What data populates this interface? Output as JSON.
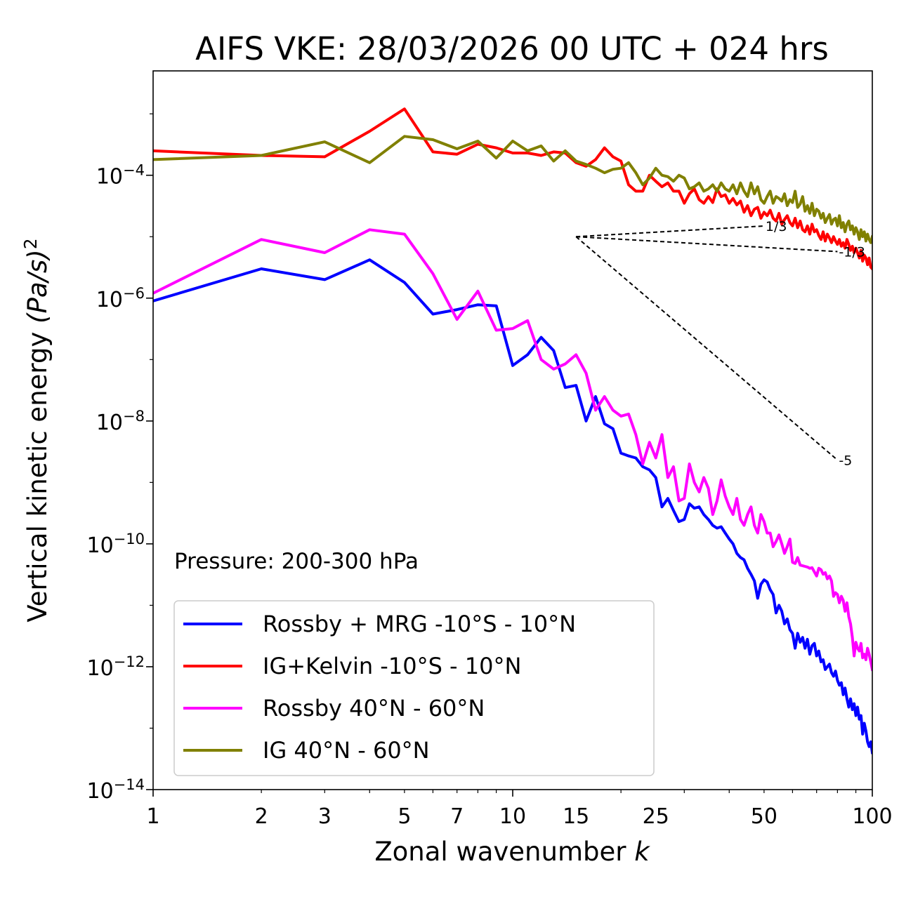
{
  "chart_data": {
    "type": "line",
    "title": "AIFS VKE: 28/03/2026 00 UTC + 024 hrs",
    "xlabel_text": "Zonal wavenumber ",
    "xlabel_italic": "k",
    "ylabel_text": "Vertical kinetic energy ",
    "ylabel_italic": "(Pa/s)",
    "ylabel_sup": "2",
    "xscale": "log",
    "yscale": "log",
    "xlim": [
      1,
      100
    ],
    "ylim": [
      1e-14,
      0.005
    ],
    "x_ticks": [
      1,
      2,
      3,
      5,
      7,
      10,
      15,
      25,
      50,
      100
    ],
    "x_tick_labels": [
      "1",
      "2",
      "3",
      "5",
      "7",
      "10",
      "15",
      "25",
      "50",
      "100"
    ],
    "y_ticks": [
      0.0001,
      1e-06,
      1e-08,
      1e-10,
      1e-12,
      1e-14
    ],
    "y_tick_base": "10",
    "y_tick_exponents": [
      "−4",
      "−6",
      "−8",
      "−10",
      "−12",
      "−14"
    ],
    "annotation": "Pressure: 200-300 hPa",
    "legend_position": "lower-left",
    "reference_slopes": [
      {
        "label": "-1/3",
        "slope": -0.3333,
        "x": [
          15,
          80
        ],
        "y0": 1e-05
      },
      {
        "label": "1/3",
        "slope": 0.3333,
        "x": [
          15,
          50
        ],
        "y0": 1e-05
      },
      {
        "label": "-5",
        "slope": -5,
        "x": [
          15,
          80
        ],
        "y0": 1e-05
      }
    ],
    "series": [
      {
        "name": "Rossby + MRG -10°S - 10°N",
        "color": "#0000ff",
        "x": [
          1,
          2,
          3,
          4,
          5,
          6,
          7,
          8,
          9,
          10,
          11,
          12,
          13,
          14,
          15,
          16,
          17,
          18,
          19,
          20,
          21,
          22,
          23,
          24,
          25,
          26,
          27,
          28,
          29,
          30,
          31,
          32,
          33,
          34,
          35,
          36,
          37,
          38,
          39,
          40,
          41,
          42,
          43,
          44,
          45,
          46,
          47,
          48,
          49,
          50,
          51,
          52,
          53,
          54,
          55,
          56,
          57,
          58,
          59,
          60,
          61,
          62,
          63,
          64,
          65,
          66,
          67,
          68,
          69,
          70,
          71,
          72,
          73,
          74,
          75,
          76,
          77,
          78,
          79,
          80,
          81,
          82,
          83,
          84,
          85,
          86,
          87,
          88,
          89,
          90,
          91,
          92,
          93,
          94,
          95,
          96,
          97,
          98,
          99,
          100
        ],
        "y": [
          9e-07,
          3e-06,
          2e-06,
          4.2e-06,
          1.8e-06,
          5.5e-07,
          6.5e-07,
          7.8e-07,
          7.5e-07,
          8e-08,
          1.2e-07,
          2.3e-07,
          1.4e-07,
          3.5e-08,
          3.8e-08,
          1e-08,
          2.5e-08,
          9e-09,
          7.5e-09,
          3e-09,
          2.7e-09,
          2.5e-09,
          1.8e-09,
          1.6e-09,
          1.2e-09,
          4e-10,
          5.5e-10,
          3.5e-10,
          2.3e-10,
          2.5e-10,
          4.5e-10,
          3.8e-10,
          4e-10,
          3e-10,
          2.5e-10,
          2e-10,
          1.8e-10,
          1.9e-10,
          1.5e-10,
          1.2e-10,
          1e-10,
          7e-11,
          6e-11,
          5.5e-11,
          4e-11,
          3.2e-11,
          2.5e-11,
          1.3e-11,
          2.2e-11,
          2.6e-11,
          2.4e-11,
          1.8e-11,
          1.5e-11,
          7.5e-12,
          1e-11,
          8e-12,
          5e-12,
          6e-12,
          4e-12,
          3.5e-12,
          2e-12,
          3.5e-12,
          2.5e-12,
          3e-12,
          2e-12,
          2.8e-12,
          1.6e-12,
          2.2e-12,
          2.4e-12,
          1.5e-12,
          1.8e-12,
          1.2e-12,
          1.3e-12,
          9e-13,
          1e-12,
          1.1e-12,
          8e-13,
          7e-13,
          8.5e-13,
          6e-13,
          5e-13,
          5.5e-13,
          3.5e-13,
          4.5e-13,
          3e-13,
          2.2e-13,
          3e-13,
          2e-13,
          2.5e-13,
          1.6e-13,
          2.2e-13,
          1.4e-13,
          1.6e-13,
          8e-14,
          1.2e-13,
          9e-14,
          6e-14,
          5e-14,
          6e-14,
          4e-14
        ]
      },
      {
        "name": "IG+Kelvin -10°S - 10°N",
        "color": "#ff0000",
        "x": [
          1,
          2,
          3,
          4,
          5,
          6,
          7,
          8,
          9,
          10,
          11,
          12,
          13,
          14,
          15,
          16,
          17,
          18,
          19,
          20,
          21,
          22,
          23,
          24,
          25,
          26,
          27,
          28,
          29,
          30,
          31,
          32,
          33,
          34,
          35,
          36,
          37,
          38,
          39,
          40,
          41,
          42,
          43,
          44,
          45,
          46,
          47,
          48,
          49,
          50,
          51,
          52,
          53,
          54,
          55,
          56,
          57,
          58,
          59,
          60,
          61,
          62,
          63,
          64,
          65,
          66,
          67,
          68,
          69,
          70,
          71,
          72,
          73,
          74,
          75,
          76,
          77,
          78,
          79,
          80,
          81,
          82,
          83,
          84,
          85,
          86,
          87,
          88,
          89,
          90,
          91,
          92,
          93,
          94,
          95,
          96,
          97,
          98,
          99,
          100
        ],
        "y": [
          0.00025,
          0.00021,
          0.0002,
          0.00052,
          0.0012,
          0.00024,
          0.00022,
          0.00032,
          0.00028,
          0.00023,
          0.00023,
          0.00021,
          0.00024,
          0.00023,
          0.00016,
          0.00014,
          0.00018,
          0.00028,
          0.0002,
          0.00017,
          7e-05,
          5.5e-05,
          5.5e-05,
          0.0001,
          8e-05,
          6.5e-05,
          7.5e-05,
          5.5e-05,
          5.5e-05,
          3.5e-05,
          5e-05,
          6e-05,
          4e-05,
          3.5e-05,
          4.5e-05,
          3.6e-05,
          6e-05,
          4.5e-05,
          4.8e-05,
          3.5e-05,
          4.2e-05,
          3.3e-05,
          3.8e-05,
          2.5e-05,
          3.2e-05,
          2.2e-05,
          2.8e-05,
          3e-05,
          2e-05,
          2.5e-05,
          2.2e-05,
          2.7e-05,
          2e-05,
          1.8e-05,
          2.4e-05,
          1.6e-05,
          1.9e-05,
          2.2e-05,
          1.7e-05,
          1.5e-05,
          2e-05,
          1.4e-05,
          1.8e-05,
          1.3e-05,
          1.2e-05,
          1.5e-05,
          1.1e-05,
          1.6e-05,
          1.2e-05,
          1.3e-05,
          1.05e-05,
          9e-06,
          1.2e-05,
          8.5e-06,
          1.1e-05,
          9.5e-06,
          8e-06,
          1e-05,
          8.5e-06,
          7.5e-06,
          9e-06,
          7e-06,
          8e-06,
          6.5e-06,
          9e-06,
          7.5e-06,
          6e-06,
          7e-06,
          5.5e-06,
          6.5e-06,
          5.5e-06,
          4.5e-06,
          6e-06,
          4e-06,
          5e-06,
          4.5e-06,
          3.5e-06,
          4.5e-06,
          3.2e-06,
          3e-06
        ]
      },
      {
        "name": "Rossby 40°N - 60°N",
        "color": "#ff00ff",
        "x": [
          1,
          2,
          3,
          4,
          5,
          6,
          7,
          8,
          9,
          10,
          11,
          12,
          13,
          14,
          15,
          16,
          17,
          18,
          19,
          20,
          21,
          22,
          23,
          24,
          25,
          26,
          27,
          28,
          29,
          30,
          31,
          32,
          33,
          34,
          35,
          36,
          37,
          38,
          39,
          40,
          41,
          42,
          43,
          44,
          45,
          46,
          47,
          48,
          49,
          50,
          51,
          52,
          53,
          54,
          55,
          56,
          57,
          58,
          59,
          60,
          61,
          62,
          63,
          64,
          65,
          66,
          67,
          68,
          69,
          70,
          71,
          72,
          73,
          74,
          75,
          76,
          77,
          78,
          79,
          80,
          81,
          82,
          83,
          84,
          85,
          86,
          87,
          88,
          89,
          90,
          91,
          92,
          93,
          94,
          95,
          96,
          97,
          98,
          99,
          100
        ],
        "y": [
          1.2e-06,
          9e-06,
          5.5e-06,
          1.3e-05,
          1.1e-05,
          2.5e-06,
          4.5e-07,
          1.3e-06,
          3e-07,
          3.2e-07,
          4.3e-07,
          1e-07,
          7e-08,
          8.5e-08,
          1.2e-07,
          6e-08,
          1.5e-08,
          2.5e-08,
          1.5e-08,
          1.2e-08,
          1.3e-08,
          6e-09,
          2e-09,
          4.5e-09,
          2.5e-09,
          6e-09,
          1.2e-09,
          1.8e-09,
          5e-10,
          5.5e-10,
          2e-09,
          1e-09,
          7e-10,
          1.2e-09,
          8e-10,
          3e-10,
          5e-10,
          1.1e-09,
          6e-10,
          4e-10,
          3e-10,
          5.5e-10,
          2.5e-10,
          2e-10,
          3e-10,
          4e-10,
          2e-10,
          1.5e-10,
          3e-10,
          2.3e-10,
          1.5e-10,
          1.5e-10,
          9e-11,
          1.1e-10,
          1.4e-10,
          1e-10,
          7e-11,
          9e-11,
          1.2e-10,
          5e-11,
          4.8e-11,
          6e-11,
          4.5e-11,
          4.4e-11,
          4.3e-11,
          4.2e-11,
          4e-11,
          4.1e-11,
          3.5e-11,
          3e-11,
          4e-11,
          3.8e-11,
          3.2e-11,
          3.4e-11,
          2.7e-11,
          3e-11,
          2.5e-11,
          1.4e-11,
          1.6e-11,
          1.5e-11,
          1.1e-11,
          1.4e-11,
          1.2e-11,
          8e-12,
          1.1e-11,
          6.5e-12,
          5e-12,
          3e-12,
          1.5e-12,
          2.5e-12,
          2e-12,
          1.8e-12,
          2.4e-12,
          1.4e-12,
          1.6e-12,
          1.3e-12,
          2e-12,
          1.6e-12,
          1.2e-12,
          9e-13
        ]
      },
      {
        "name": "IG 40°N - 60°N",
        "color": "#808000",
        "x": [
          1,
          2,
          3,
          4,
          5,
          6,
          7,
          8,
          9,
          10,
          11,
          12,
          13,
          14,
          15,
          16,
          17,
          18,
          19,
          20,
          21,
          22,
          23,
          24,
          25,
          26,
          27,
          28,
          29,
          30,
          31,
          32,
          33,
          34,
          35,
          36,
          37,
          38,
          39,
          40,
          41,
          42,
          43,
          44,
          45,
          46,
          47,
          48,
          49,
          50,
          51,
          52,
          53,
          54,
          55,
          56,
          57,
          58,
          59,
          60,
          61,
          62,
          63,
          64,
          65,
          66,
          67,
          68,
          69,
          70,
          71,
          72,
          73,
          74,
          75,
          76,
          77,
          78,
          79,
          80,
          81,
          82,
          83,
          84,
          85,
          86,
          87,
          88,
          89,
          90,
          91,
          92,
          93,
          94,
          95,
          96,
          97,
          98,
          99,
          100
        ],
        "y": [
          0.00018,
          0.00021,
          0.00035,
          0.00016,
          0.00043,
          0.00038,
          0.00027,
          0.00036,
          0.00019,
          0.00036,
          0.00025,
          0.0003,
          0.00017,
          0.00025,
          0.00017,
          0.00015,
          0.00013,
          0.00011,
          0.000125,
          0.00013,
          0.00016,
          0.00011,
          7e-05,
          9e-05,
          0.00013,
          0.0001,
          9.5e-05,
          8e-05,
          0.0001,
          9e-05,
          6e-05,
          6.5e-05,
          7.5e-05,
          5.5e-05,
          6e-05,
          7e-05,
          5.5e-05,
          7.5e-05,
          6e-05,
          5.5e-05,
          7e-05,
          5e-05,
          7.5e-05,
          5.5e-05,
          4.5e-05,
          7.5e-05,
          5e-05,
          6.5e-05,
          4e-05,
          3.5e-05,
          4.5e-05,
          5.5e-05,
          3.5e-05,
          4.5e-05,
          4.2e-05,
          3.8e-05,
          5e-05,
          3.2e-05,
          4e-05,
          3.6e-05,
          5.5e-05,
          3e-05,
          3.4e-05,
          4.5e-05,
          2.6e-05,
          3.2e-05,
          2.4e-05,
          3.5e-05,
          2.2e-05,
          2.8e-05,
          2.6e-05,
          2e-05,
          2.4e-05,
          1.7e-05,
          2e-05,
          2.3e-05,
          1.6e-05,
          1.9e-05,
          2e-05,
          1.5e-05,
          2.2e-05,
          1.4e-05,
          1.7e-05,
          1.2e-05,
          1.6e-05,
          1.8e-05,
          1.3e-05,
          1.5e-05,
          1.1e-05,
          1.4e-05,
          1.2e-05,
          9e-06,
          1.3e-05,
          1e-05,
          1.2e-05,
          8.5e-06,
          1.1e-05,
          9e-06,
          8e-06,
          1e-05
        ]
      }
    ]
  }
}
